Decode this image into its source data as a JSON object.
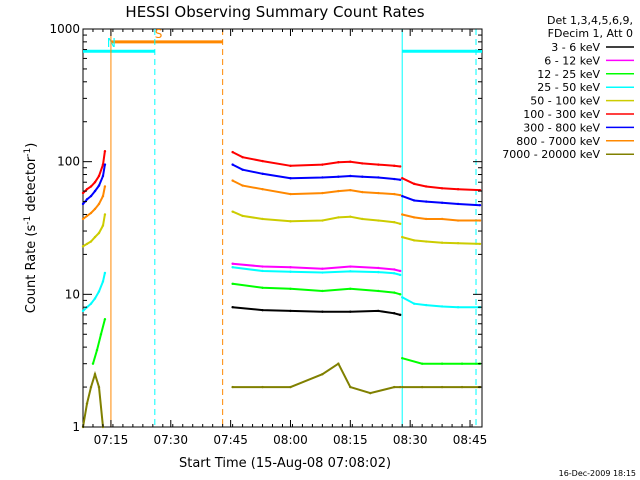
{
  "chart_data": {
    "type": "line",
    "title": "HESSI Observing Summary Count Rates",
    "xlabel": "Start Time (15-Aug-08 07:08:02)",
    "ylabel": "Count Rate (s",
    "ylabel_sup1": "-1",
    "ylabel_mid": " detector",
    "ylabel_sup2": "-1",
    "ylabel_end": ")",
    "y_scale": "log",
    "ylim": [
      1,
      1000
    ],
    "xlim_minutes": [
      0,
      100
    ],
    "x_ticks": [
      {
        "min": 7,
        "label": "07:15"
      },
      {
        "min": 22,
        "label": "07:30"
      },
      {
        "min": 37,
        "label": "07:45"
      },
      {
        "min": 52,
        "label": "08:00"
      },
      {
        "min": 67,
        "label": "08:15"
      },
      {
        "min": 82,
        "label": "08:30"
      },
      {
        "min": 97,
        "label": "08:45"
      }
    ],
    "y_ticks": [
      {
        "value": 1,
        "label": "1"
      },
      {
        "value": 10,
        "label": "10"
      },
      {
        "value": 100,
        "label": "100"
      },
      {
        "value": 1000,
        "label": "1000"
      }
    ],
    "legend": {
      "header1": "Det 1,3,4,5,6,9,",
      "header2": "FDecim 1, Att 0",
      "placement": "right"
    },
    "series": [
      {
        "name": "3 - 6 keV",
        "color": "#000000",
        "segments": [
          {
            "x": [
              37.5,
              45,
              52,
              60,
              67,
              74,
              78,
              79.5
            ],
            "y": [
              8,
              7.6,
              7.5,
              7.4,
              7.4,
              7.5,
              7.2,
              7
            ]
          }
        ]
      },
      {
        "name": "6 - 12 keV",
        "color": "#ff00ff",
        "segments": [
          {
            "x": [
              37.5,
              45,
              52,
              60,
              67,
              74,
              78,
              79.5
            ],
            "y": [
              17,
              16.2,
              16,
              15.6,
              16.2,
              15.8,
              15.4,
              15
            ]
          }
        ]
      },
      {
        "name": "12 - 25 keV",
        "color": "#00ff00",
        "segments": [
          {
            "x": [
              2.5,
              3.5,
              4.5,
              5.5
            ],
            "y": [
              3,
              3.8,
              5,
              6.5
            ]
          },
          {
            "x": [
              37.5,
              45,
              52,
              60,
              67,
              74,
              78,
              79.5
            ],
            "y": [
              12,
              11.2,
              11,
              10.6,
              11,
              10.6,
              10.3,
              10
            ]
          },
          {
            "x": [
              80,
              85,
              90,
              95,
              99.5
            ],
            "y": [
              3.3,
              3.0,
              3.0,
              3.0,
              3.0
            ]
          }
        ]
      },
      {
        "name": "25 - 50 keV",
        "color": "#00ffff",
        "segments": [
          {
            "x": [
              0,
              1,
              2,
              3,
              4,
              5,
              5.5
            ],
            "y": [
              7.5,
              8,
              8.5,
              9.3,
              10.5,
              12.5,
              14.5
            ]
          },
          {
            "x": [
              37.5,
              45,
              52,
              60,
              67,
              74,
              78,
              79.5
            ],
            "y": [
              16,
              15,
              14.8,
              14.6,
              14.9,
              14.7,
              14.4,
              14
            ]
          },
          {
            "x": [
              80,
              83,
              86,
              90,
              94,
              99.5
            ],
            "y": [
              9.5,
              8.5,
              8.3,
              8.1,
              8.0,
              8.0
            ]
          }
        ]
      },
      {
        "name": "50 - 100 keV",
        "color": "#cccc00",
        "segments": [
          {
            "x": [
              0,
              1,
              2,
              3,
              4,
              5,
              5.5
            ],
            "y": [
              23,
              24,
              25,
              27,
              29,
              33,
              40
            ]
          },
          {
            "x": [
              37.5,
              40,
              45,
              52,
              60,
              64,
              67,
              70,
              74,
              78,
              79.5
            ],
            "y": [
              42,
              39,
              37,
              35.5,
              36,
              38,
              38.5,
              37,
              36,
              35,
              34
            ]
          },
          {
            "x": [
              80,
              83,
              86,
              90,
              94,
              99.5
            ],
            "y": [
              27,
              25.5,
              25,
              24.5,
              24.3,
              24
            ]
          }
        ]
      },
      {
        "name": "100 - 300 keV",
        "color": "#ff0000",
        "segments": [
          {
            "x": [
              0,
              1,
              2,
              3,
              4,
              5,
              5.5
            ],
            "y": [
              58,
              62,
              65,
              70,
              78,
              95,
              120
            ]
          },
          {
            "x": [
              37.5,
              40,
              45,
              52,
              60,
              64,
              67,
              70,
              74,
              78,
              79.5
            ],
            "y": [
              118,
              108,
              101,
              93,
              95,
              99,
              100,
              97,
              95,
              93,
              92
            ]
          },
          {
            "x": [
              80,
              83,
              86,
              90,
              94,
              99.5
            ],
            "y": [
              75,
              68,
              65,
              63,
              62,
              61
            ]
          }
        ]
      },
      {
        "name": "300 - 800 keV",
        "color": "#0000ff",
        "segments": [
          {
            "x": [
              0,
              1,
              2,
              3,
              4,
              5,
              5.5
            ],
            "y": [
              48,
              52,
              55,
              60,
              66,
              78,
              95
            ]
          },
          {
            "x": [
              37.5,
              40,
              45,
              52,
              60,
              64,
              67,
              70,
              74,
              78,
              79.5
            ],
            "y": [
              95,
              87,
              81,
              75,
              76,
              77,
              78,
              77,
              76,
              74,
              73
            ]
          },
          {
            "x": [
              80,
              83,
              86,
              90,
              94,
              99.5
            ],
            "y": [
              55,
              51,
              50,
              49,
              48,
              47
            ]
          }
        ]
      },
      {
        "name": "800 - 7000 keV",
        "color": "#ff8800",
        "segments": [
          {
            "x": [
              0,
              1,
              2,
              3,
              4,
              5,
              5.5
            ],
            "y": [
              37,
              39,
              41,
              44,
              48,
              55,
              65
            ]
          },
          {
            "x": [
              37.5,
              40,
              45,
              52,
              60,
              64,
              67,
              70,
              74,
              78,
              79.5
            ],
            "y": [
              72,
              66,
              62,
              57,
              58,
              60,
              61,
              59,
              58,
              57,
              56
            ]
          },
          {
            "x": [
              80,
              83,
              86,
              90,
              94,
              99.5
            ],
            "y": [
              40,
              38,
              37,
              37,
              36,
              36
            ]
          }
        ]
      },
      {
        "name": "7000 - 20000 keV",
        "color": "#808000",
        "segments": [
          {
            "x": [
              0,
              1,
              2,
              3,
              4,
              5
            ],
            "y": [
              1,
              1.5,
              2,
              2.5,
              2,
              1
            ]
          },
          {
            "x": [
              37.5,
              45,
              52,
              60,
              64,
              67,
              72,
              78,
              79.5
            ],
            "y": [
              2,
              2,
              2,
              2.5,
              3,
              2,
              1.8,
              2,
              2
            ]
          },
          {
            "x": [
              80,
              85,
              90,
              95,
              99.5
            ],
            "y": [
              2,
              2,
              2,
              2,
              2
            ]
          }
        ]
      }
    ],
    "annotations": [
      {
        "type": "bar",
        "label": "S",
        "color": "#ff8800",
        "x_start": 7,
        "x_end": 35,
        "y": 800
      },
      {
        "type": "bar",
        "label": "N",
        "color": "#00ffff",
        "x_start": 0,
        "x_end": 18,
        "y": 680
      },
      {
        "type": "bar",
        "label": "",
        "color": "#00ffff",
        "x_start": 80,
        "x_end": 100,
        "y": 680
      },
      {
        "type": "vline",
        "color": "#00ffff",
        "x": 18,
        "dash": true
      },
      {
        "type": "vline",
        "color": "#ff8800",
        "x": 35,
        "dash": true
      },
      {
        "type": "vline",
        "color": "#00ffff",
        "x": 98.5,
        "dash": true
      },
      {
        "type": "vline",
        "color": "#ff8800",
        "x": 7,
        "dash": false
      },
      {
        "type": "vline",
        "color": "#00ffff",
        "x": 80,
        "dash": false
      }
    ]
  },
  "footer": {
    "date": "16-Dec-2009 18:15"
  }
}
